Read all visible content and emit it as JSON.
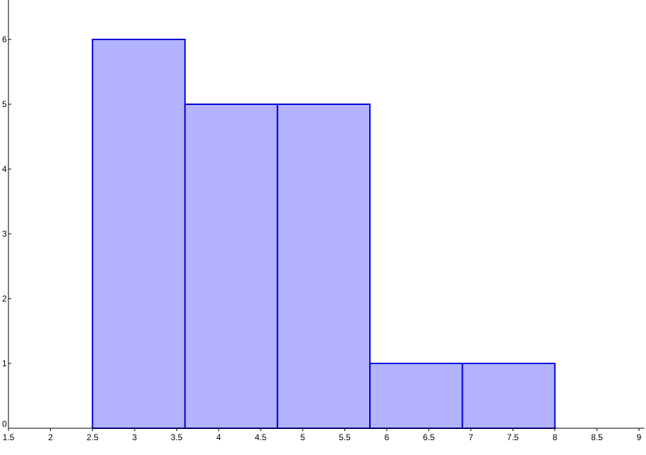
{
  "chart_data": {
    "type": "bar",
    "variant": "histogram",
    "bins": [
      {
        "start": 2.5,
        "end": 3.6,
        "value": 6
      },
      {
        "start": 3.6,
        "end": 4.7,
        "value": 5
      },
      {
        "start": 4.7,
        "end": 5.8,
        "value": 5
      },
      {
        "start": 5.8,
        "end": 6.9,
        "value": 1
      },
      {
        "start": 6.9,
        "end": 8.0,
        "value": 1
      }
    ],
    "x_ticks": [
      "1.5",
      "2",
      "2.5",
      "3",
      "3.5",
      "4",
      "4.5",
      "5",
      "5.5",
      "6",
      "6.5",
      "7",
      "7.5",
      "8",
      "8.5",
      "9"
    ],
    "y_ticks": [
      "0",
      "1",
      "2",
      "3",
      "4",
      "5",
      "6"
    ],
    "xlim": [
      1.5,
      9
    ],
    "ylim": [
      0,
      6.6
    ],
    "title": "",
    "xlabel": "",
    "ylabel": "",
    "grid": false,
    "colors": {
      "bar_fill": "#b3b3ff",
      "bar_stroke": "#0000dd",
      "axis": "#000000"
    }
  }
}
